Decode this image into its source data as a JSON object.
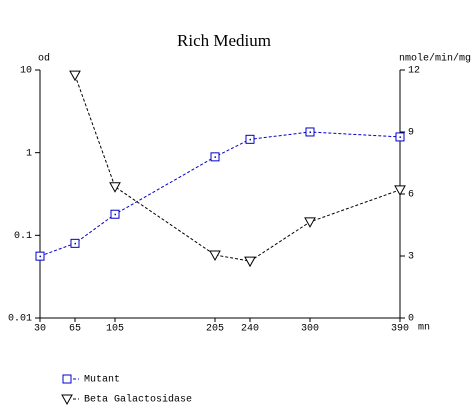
{
  "chart_data": {
    "type": "line",
    "title": "Rich Medium",
    "y_label": "od",
    "y2_label": "nmole/min/mg",
    "x_label": "mn",
    "x": [
      30,
      65,
      105,
      205,
      240,
      300,
      390
    ],
    "xlim": [
      30,
      390
    ],
    "xticks": [
      30,
      65,
      105,
      205,
      240,
      300,
      390
    ],
    "ylim": [
      0.01,
      10
    ],
    "yticks": [
      0.01,
      0.1,
      1,
      10
    ],
    "yscale": "log",
    "y2lim": [
      0,
      12
    ],
    "y2ticks": [
      0,
      3,
      6,
      9,
      12
    ],
    "series": [
      {
        "name": "Mutant",
        "color": "#0000cc",
        "marker": "square",
        "x": [
          30,
          65,
          105,
          205,
          240,
          300,
          390
        ],
        "values": [
          0.056,
          0.08,
          0.18,
          0.89,
          1.45,
          1.78,
          1.55
        ]
      },
      {
        "name": "Beta Galactosidase",
        "color": "#000000",
        "marker": "triangle-down",
        "axis": "y2",
        "x": [
          65,
          105,
          205,
          240,
          300,
          390
        ],
        "values": [
          11.75,
          6.35,
          3.05,
          2.75,
          4.65,
          6.2
        ]
      }
    ]
  }
}
